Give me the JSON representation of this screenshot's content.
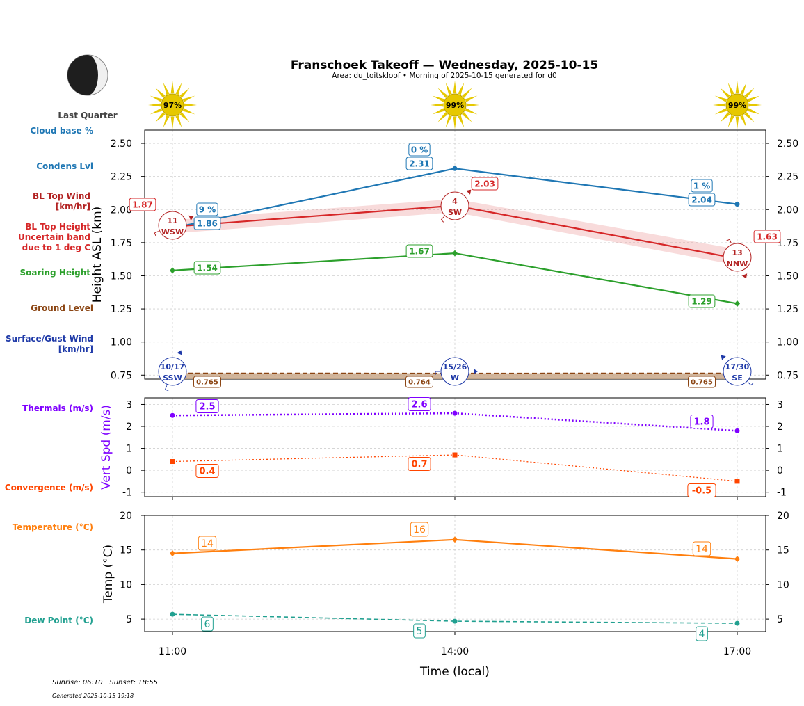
{
  "title": "Franschoek Takeoff — Wednesday, 2025-10-15",
  "subtitle": "Area: du_toitskloof • Morning of 2025-10-15 generated for d0",
  "moon": {
    "phase_label": "Last Quarter"
  },
  "sun_clouds": [
    "97%",
    "99%",
    "99%"
  ],
  "row_labels": {
    "cloud_base": "Cloud base %",
    "condens_lvl": "Condens Lvl",
    "bl_top_wind": [
      "BL Top Wind",
      "[km/hr]"
    ],
    "bl_top_height": [
      "BL Top Height",
      "Uncertain band",
      "due to 1 deg C"
    ],
    "soaring_height": "Soaring Height",
    "ground_level": "Ground Level",
    "surface_wind": [
      "Surface/Gust Wind",
      "[km/hr]"
    ],
    "thermals": "Thermals (m/s)",
    "convergence": "Convergence (m/s)",
    "temperature": "Temperature (°C)",
    "dew_point": "Dew Point (°C)"
  },
  "footer": {
    "sun_times": "Sunrise: 06:10 | Sunset: 18:55",
    "generated": "Generated 2025-10-15 19:18"
  },
  "colors": {
    "condens": "#1f77b4",
    "bl_top": "#d62728",
    "soaring": "#2ca02c",
    "ground": "#8b4513",
    "surface_wind": "#1f3aa8",
    "thermals": "#7f00ff",
    "convergence": "#ff4500",
    "temperature": "#ff7f0e",
    "dew_point": "#21a090",
    "sun": "#e6c800"
  },
  "chart_data": [
    {
      "type": "line",
      "x": [
        "11:00",
        "14:00",
        "17:00"
      ],
      "ylabel": "Height ASL (km)",
      "ylim": [
        0.72,
        2.6
      ],
      "yticks": [
        0.75,
        1.0,
        1.25,
        1.5,
        1.75,
        2.0,
        2.25,
        2.5
      ],
      "grid": true,
      "series": [
        {
          "name": "Condens Lvl",
          "values": [
            1.86,
            2.31,
            2.04
          ],
          "labels": [
            "1.86",
            "2.31",
            "2.04"
          ],
          "cloud_base_pct": [
            "9 %",
            "0 %",
            "1 %"
          ]
        },
        {
          "name": "BL Top Height",
          "values": [
            1.87,
            2.03,
            1.63
          ],
          "labels": [
            "1.87",
            "2.03",
            "1.63"
          ],
          "band_low": [
            1.82,
            1.98,
            1.58
          ],
          "band_high": [
            1.92,
            2.08,
            1.7
          ]
        },
        {
          "name": "Soaring Height",
          "values": [
            1.54,
            1.67,
            1.29
          ],
          "labels": [
            "1.54",
            "1.67",
            "1.29"
          ]
        },
        {
          "name": "Ground Level",
          "values": [
            0.765,
            0.764,
            0.765
          ],
          "labels": [
            "0.765",
            "0.764",
            "0.765"
          ]
        }
      ],
      "bl_top_wind": [
        {
          "speed": "11",
          "dir": "WSW",
          "deg": 247
        },
        {
          "speed": "4",
          "dir": "SW",
          "deg": 225
        },
        {
          "speed": "13",
          "dir": "NNW",
          "deg": 337
        }
      ],
      "surface_wind": [
        {
          "speed": "10/17",
          "dir": "SSW",
          "deg": 202
        },
        {
          "speed": "15/26",
          "dir": "W",
          "deg": 270
        },
        {
          "speed": "17/30",
          "dir": "SE",
          "deg": 135
        }
      ]
    },
    {
      "type": "line",
      "x": [
        "11:00",
        "14:00",
        "17:00"
      ],
      "ylabel": "Vert Spd (m/s)",
      "ylim": [
        -1.2,
        3.3
      ],
      "yticks": [
        -1,
        0,
        1,
        2,
        3
      ],
      "grid": true,
      "series": [
        {
          "name": "Thermals (m/s)",
          "values": [
            2.5,
            2.6,
            1.8
          ],
          "labels": [
            "2.5",
            "2.6",
            "1.8"
          ]
        },
        {
          "name": "Convergence (m/s)",
          "values": [
            0.4,
            0.7,
            -0.5
          ],
          "labels": [
            "0.4",
            "0.7",
            "-0.5"
          ]
        }
      ]
    },
    {
      "type": "line",
      "x": [
        "11:00",
        "14:00",
        "17:00"
      ],
      "xlabel": "Time (local)",
      "ylabel": "Temp (°C)",
      "ylim": [
        3.2,
        20
      ],
      "yticks": [
        5,
        10,
        15,
        20
      ],
      "grid": true,
      "series": [
        {
          "name": "Temperature (°C)",
          "values": [
            14.5,
            16.5,
            13.7
          ],
          "labels": [
            "14",
            "16",
            "14"
          ]
        },
        {
          "name": "Dew Point (°C)",
          "values": [
            5.7,
            4.7,
            4.4
          ],
          "labels": [
            "6",
            "5",
            "4"
          ]
        }
      ]
    }
  ]
}
